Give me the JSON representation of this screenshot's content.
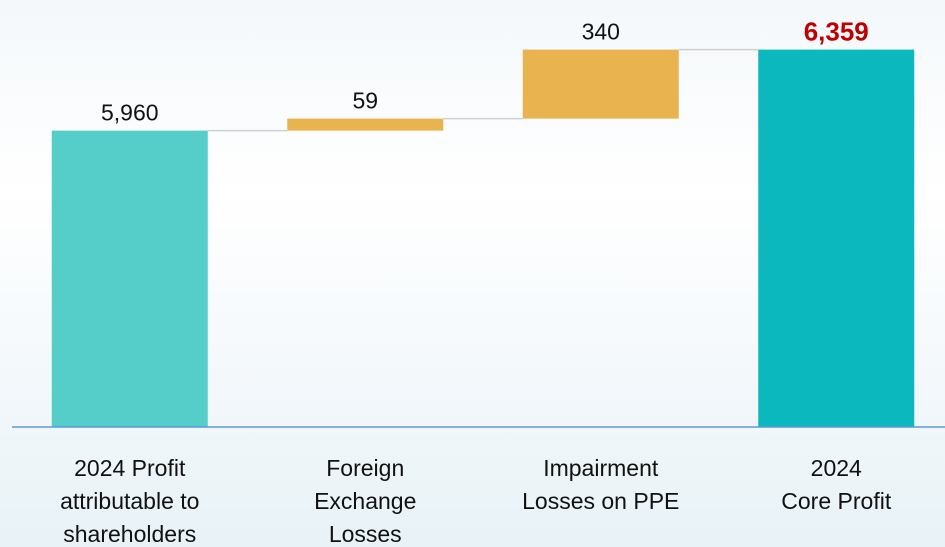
{
  "chart_data": {
    "type": "waterfall",
    "categories": [
      [
        "2024 Profit",
        "attributable to",
        "shareholders"
      ],
      [
        "Foreign",
        "Exchange",
        "Losses"
      ],
      [
        "Impairment",
        "Losses on PPE"
      ],
      [
        "2024",
        "Core Profit"
      ]
    ],
    "values": [
      5960,
      59,
      340,
      6359
    ],
    "value_labels": [
      "5,960",
      "59",
      "340",
      "6,359"
    ],
    "measure": [
      "absolute",
      "relative",
      "relative",
      "total"
    ],
    "colors": [
      "#55cdc8",
      "#e9b450",
      "#e9b450",
      "#0bb8be"
    ],
    "total_label_color": "#c00000",
    "ylim": [
      4500,
      6500
    ]
  }
}
